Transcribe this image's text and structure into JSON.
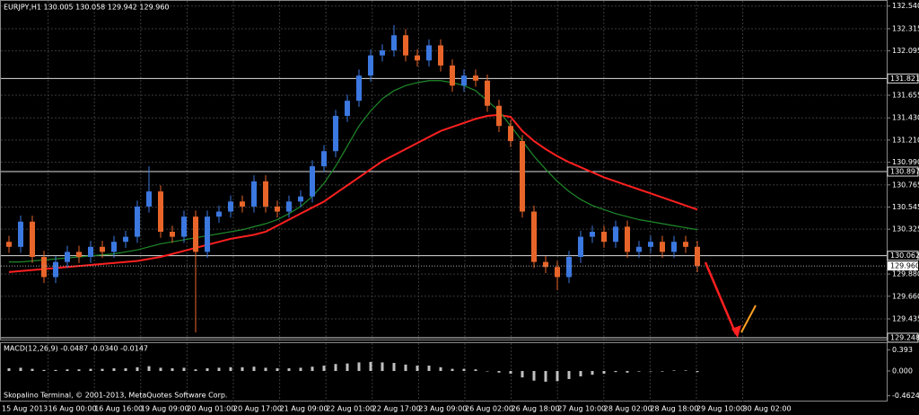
{
  "chart_data": {
    "type": "candlestick",
    "header": "EURJPY,H1  130.005 130.058 129.942 129.960",
    "footer": "Skopalino Terminal, © 2001-2013, MetaQuotes Software Corp.",
    "time_labels": [
      "15 Aug 2013",
      "16 Aug 00:00",
      "16 Aug 16:00",
      "19 Aug 09:00",
      "20 Aug 01:00",
      "20 Aug 17:00",
      "21 Aug 09:00",
      "22 Aug 01:00",
      "22 Aug 17:00",
      "23 Aug 09:00",
      "26 Aug 02:00",
      "26 Aug 18:00",
      "27 Aug 10:00",
      "28 Aug 02:00",
      "28 Aug 18:00",
      "29 Aug 10:00",
      "30 Aug 02:00"
    ],
    "open": [
      130.2,
      130.15,
      130.4,
      130.05,
      129.85,
      130.0,
      130.1,
      130.05,
      130.15,
      130.1,
      130.2,
      130.25,
      130.55,
      130.7,
      130.3,
      130.25,
      130.45,
      130.1,
      130.45,
      130.5,
      130.6,
      130.55,
      130.8,
      130.55,
      130.5,
      130.6,
      130.65,
      130.95,
      131.1,
      131.45,
      131.6,
      131.85,
      132.05,
      132.1,
      132.25,
      132.05,
      132.0,
      132.15,
      131.95,
      131.75,
      131.85,
      131.8,
      131.55,
      131.35,
      131.2,
      130.5,
      130.0,
      129.95,
      129.85,
      130.05,
      130.25,
      130.3,
      130.2,
      130.35,
      130.1,
      130.15,
      130.2,
      130.1,
      130.2,
      130.15
    ],
    "high": [
      130.26,
      130.46,
      130.46,
      130.11,
      130.06,
      130.16,
      130.16,
      130.21,
      130.21,
      130.26,
      130.31,
      130.61,
      130.95,
      130.76,
      130.36,
      130.51,
      130.51,
      130.51,
      130.56,
      130.66,
      130.66,
      130.86,
      130.86,
      130.61,
      130.66,
      130.71,
      131.01,
      131.16,
      131.51,
      131.66,
      131.91,
      132.11,
      132.16,
      132.35,
      132.31,
      132.11,
      132.21,
      132.21,
      132.01,
      131.91,
      131.91,
      131.86,
      131.61,
      131.41,
      131.26,
      130.56,
      130.06,
      130.01,
      130.11,
      130.31,
      130.36,
      130.36,
      130.41,
      130.41,
      130.21,
      130.26,
      130.26,
      130.26,
      130.26,
      130.21
    ],
    "low": [
      130.09,
      130.09,
      129.99,
      129.79,
      129.79,
      129.94,
      129.99,
      129.99,
      130.04,
      130.04,
      130.14,
      130.19,
      130.49,
      130.24,
      130.19,
      130.19,
      129.3,
      130.04,
      130.39,
      130.44,
      130.49,
      130.49,
      130.49,
      130.44,
      130.44,
      130.54,
      130.59,
      130.89,
      131.04,
      131.39,
      131.54,
      131.79,
      131.99,
      132.04,
      131.99,
      131.94,
      131.94,
      131.89,
      131.69,
      131.69,
      131.74,
      131.49,
      131.29,
      131.14,
      130.44,
      129.94,
      129.89,
      129.72,
      129.79,
      129.99,
      130.19,
      130.14,
      130.14,
      130.04,
      130.04,
      130.09,
      130.04,
      130.04,
      130.09,
      129.9
    ],
    "close": [
      130.15,
      130.4,
      130.05,
      129.85,
      130.0,
      130.1,
      130.05,
      130.15,
      130.1,
      130.2,
      130.25,
      130.55,
      130.7,
      130.3,
      130.25,
      130.45,
      130.1,
      130.45,
      130.5,
      130.6,
      130.55,
      130.8,
      130.55,
      130.5,
      130.6,
      130.65,
      130.95,
      131.1,
      131.45,
      131.6,
      131.85,
      132.05,
      132.1,
      132.25,
      132.05,
      132.0,
      132.15,
      131.95,
      131.75,
      131.85,
      131.8,
      131.55,
      131.35,
      131.2,
      130.5,
      130.0,
      129.95,
      129.85,
      130.05,
      130.25,
      130.3,
      130.2,
      130.35,
      130.1,
      130.15,
      130.2,
      130.1,
      130.2,
      130.15,
      129.96
    ],
    "up_color": "#3b78e0",
    "down_color": "#e8652a",
    "moving_averages": [
      {
        "color": "#ff2020",
        "values": [
          129.9,
          129.91,
          129.92,
          129.93,
          129.94,
          129.95,
          129.96,
          129.97,
          129.98,
          129.99,
          130.0,
          130.01,
          130.03,
          130.05,
          130.08,
          130.11,
          130.14,
          130.17,
          130.2,
          130.23,
          130.25,
          130.27,
          130.3,
          130.36,
          130.42,
          130.48,
          130.54,
          130.6,
          130.68,
          130.76,
          130.84,
          130.92,
          131.0,
          131.06,
          131.12,
          131.18,
          131.24,
          131.3,
          131.34,
          131.38,
          131.42,
          131.45,
          131.46,
          131.44,
          131.3,
          131.2,
          131.12,
          131.05,
          130.99,
          130.94,
          130.89,
          130.84,
          130.8,
          130.76,
          130.72,
          130.68,
          130.64,
          130.6,
          130.56,
          130.52
        ]
      },
      {
        "color": "#1f8a2a",
        "values": [
          130.0,
          130.0,
          130.01,
          130.02,
          130.03,
          130.04,
          130.05,
          130.06,
          130.07,
          130.08,
          130.1,
          130.12,
          130.15,
          130.18,
          130.2,
          130.22,
          130.24,
          130.26,
          130.28,
          130.3,
          130.32,
          130.35,
          130.38,
          130.42,
          130.48,
          130.55,
          130.65,
          130.78,
          130.95,
          131.15,
          131.35,
          131.5,
          131.62,
          131.7,
          131.75,
          131.78,
          131.8,
          131.8,
          131.78,
          131.75,
          131.7,
          131.6,
          131.5,
          131.35,
          131.2,
          131.05,
          130.92,
          130.8,
          130.7,
          130.62,
          130.56,
          130.52,
          130.48,
          130.45,
          130.42,
          130.4,
          130.38,
          130.36,
          130.34,
          130.32
        ]
      }
    ],
    "levels": [
      131.821,
      130.897,
      130.062,
      129.248
    ],
    "current_price": {
      "value": 129.96,
      "label": "129.960"
    },
    "ylim": [
      129.23,
      132.6
    ],
    "yticks": [
      {
        "value": 132.54,
        "label": "132.540"
      },
      132.315,
      {
        "value": 132.095,
        "label": "132.095"
      },
      131.655,
      {
        "value": 131.43,
        "label": "131.430"
      },
      {
        "value": 131.21,
        "label": "131.210"
      },
      {
        "value": 130.99,
        "label": "130.990"
      },
      130.765,
      130.545,
      130.325,
      {
        "value": 129.88,
        "label": "129.880"
      },
      {
        "value": 129.66,
        "label": "129.660"
      },
      129.435
    ],
    "grid": true,
    "macd": {
      "label": "MACD(12,26,9) -0.0487 -0.0340 -0.0147",
      "color": "#c0c0c0",
      "ylim": [
        -0.57,
        0.52
      ],
      "yticks": [
        0.393,
        {
          "value": 0,
          "label": "0.000"
        },
        -0.4624
      ],
      "values": [
        0.05,
        0.06,
        0.04,
        0.02,
        0.02,
        0.03,
        0.03,
        0.04,
        0.04,
        0.05,
        0.05,
        0.07,
        0.09,
        0.06,
        0.05,
        0.06,
        0.03,
        0.05,
        0.06,
        0.07,
        0.07,
        0.08,
        0.06,
        0.05,
        0.05,
        0.06,
        0.08,
        0.1,
        0.13,
        0.14,
        0.16,
        0.17,
        0.16,
        0.15,
        0.12,
        0.1,
        0.1,
        0.07,
        0.04,
        0.04,
        0.03,
        0.0,
        -0.03,
        -0.05,
        -0.12,
        -0.18,
        -0.2,
        -0.19,
        -0.15,
        -0.1,
        -0.07,
        -0.05,
        -0.02,
        -0.03,
        -0.01,
        0.0,
        -0.01,
        0.01,
        0.01,
        -0.02
      ]
    }
  }
}
